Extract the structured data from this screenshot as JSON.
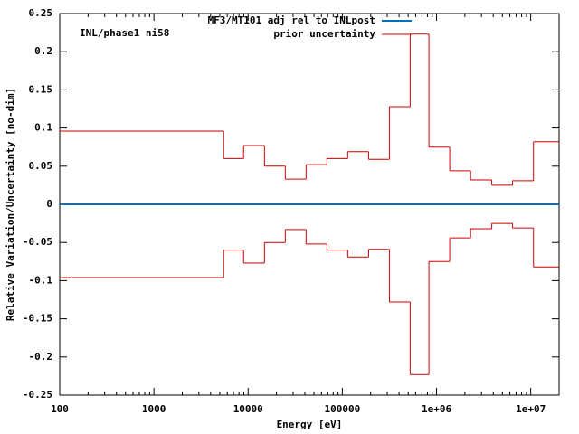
{
  "chart_data": {
    "type": "step",
    "annotation": "INL/phase1 ni58",
    "xlabel": "Energy [eV]",
    "ylabel": "Relative Variation/Uncertainty [no-dim]",
    "xscale": "log",
    "legend": "top",
    "xlim": [
      100,
      20000000
    ],
    "ylim": [
      -0.25,
      0.25
    ],
    "xticks": [
      100,
      1000,
      10000,
      100000,
      {
        "value": 1000000,
        "label": "1e+06"
      },
      {
        "value": 10000000,
        "label": "1e+07"
      }
    ],
    "yticks": [
      -0.25,
      -0.2,
      -0.15,
      -0.1,
      -0.05,
      0,
      0.05,
      0.1,
      0.15,
      0.2,
      0.25
    ],
    "lines": [
      {
        "name": "MF3/MT101 adj rel to INLpost",
        "color": "#0072bd",
        "x": [
          100,
          20000000
        ],
        "values": [
          0,
          0
        ]
      }
    ],
    "series": [
      {
        "name": "prior uncertainty",
        "color": "#cc0000",
        "mirrored": true,
        "bins": [
          100,
          5500,
          8950,
          14900,
          24800,
          41200,
          68700,
          114000,
          190000,
          316000,
          525000,
          830000,
          1380000,
          2300000,
          3860000,
          6400000,
          10700000,
          20000000
        ],
        "values": [
          0.096,
          0.06,
          0.077,
          0.05,
          0.033,
          0.052,
          0.06,
          0.069,
          0.059,
          0.128,
          0.223,
          0.075,
          0.044,
          0.032,
          0.025,
          0.031,
          0.082
        ]
      }
    ]
  }
}
